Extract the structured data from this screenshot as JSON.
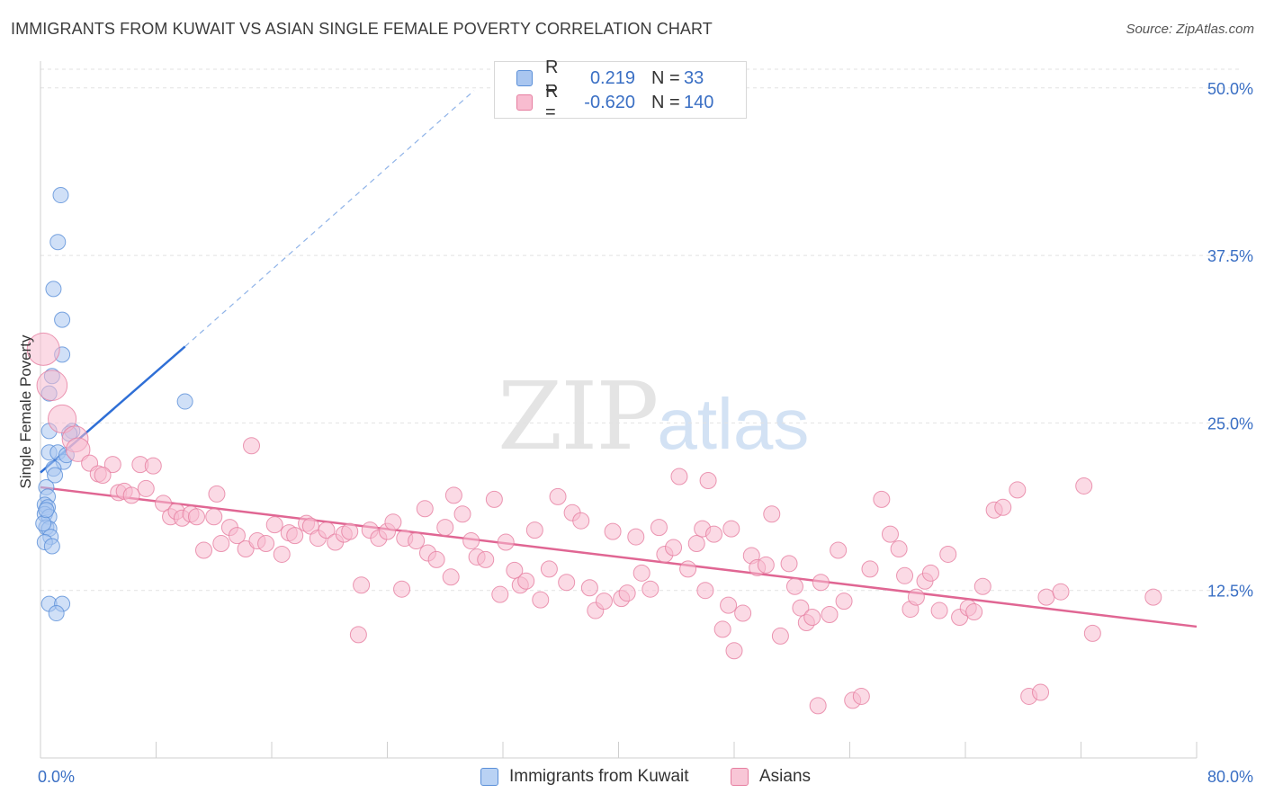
{
  "title": "IMMIGRANTS FROM KUWAIT VS ASIAN SINGLE FEMALE POVERTY CORRELATION CHART",
  "source": "Source: ZipAtlas.com",
  "watermark": {
    "zip": "ZIP",
    "atlas": "atlas"
  },
  "legend": [
    {
      "r_label": "R =",
      "r_value": "0.219",
      "n_label": "N =",
      "n_value": "33",
      "color": "#a9c6f0",
      "border": "#5a8fd8"
    },
    {
      "r_label": "R =",
      "r_value": "-0.620",
      "n_label": "N =",
      "n_value": "140",
      "color": "#f8bcd0",
      "border": "#e67ea0"
    }
  ],
  "chart_data": {
    "type": "scatter",
    "title": "IMMIGRANTS FROM KUWAIT VS ASIAN SINGLE FEMALE POVERTY CORRELATION CHART",
    "xlabel": "",
    "ylabel": "Single Female Poverty",
    "xlim": [
      0,
      80
    ],
    "ylim": [
      0,
      52
    ],
    "x_tick_labels": [
      "0.0%",
      "80.0%"
    ],
    "y_ticks": [
      12.5,
      25.0,
      37.5,
      50.0
    ],
    "y_tick_labels": [
      "12.5%",
      "25.0%",
      "37.5%",
      "50.0%"
    ],
    "grid": true,
    "legend_position": "top-center",
    "series": [
      {
        "name": "Immigrants from Kuwait",
        "color": "#a9c6f0",
        "stroke": "#5a8fd8",
        "trend": {
          "x": [
            0,
            10
          ],
          "y": [
            21.3,
            30.7
          ],
          "extended_to": [
            30,
            49.8
          ],
          "color": "#2f6fd6"
        },
        "points": [
          [
            1.4,
            42.0
          ],
          [
            1.2,
            38.5
          ],
          [
            0.9,
            35.0
          ],
          [
            1.5,
            32.7
          ],
          [
            1.5,
            30.1
          ],
          [
            0.8,
            28.5
          ],
          [
            0.6,
            27.2
          ],
          [
            10.0,
            26.6
          ],
          [
            0.6,
            24.4
          ],
          [
            2.2,
            24.4
          ],
          [
            0.6,
            22.8
          ],
          [
            1.2,
            22.8
          ],
          [
            1.6,
            22.1
          ],
          [
            0.9,
            21.6
          ],
          [
            1.0,
            21.1
          ],
          [
            0.4,
            20.2
          ],
          [
            0.5,
            19.5
          ],
          [
            0.3,
            18.9
          ],
          [
            0.5,
            18.7
          ],
          [
            0.3,
            18.2
          ],
          [
            0.6,
            18.0
          ],
          [
            0.4,
            17.2
          ],
          [
            0.6,
            17.1
          ],
          [
            0.7,
            16.5
          ],
          [
            0.3,
            16.1
          ],
          [
            0.8,
            15.8
          ],
          [
            0.6,
            11.5
          ],
          [
            1.5,
            11.5
          ],
          [
            1.1,
            10.8
          ],
          [
            2.0,
            24.2
          ],
          [
            1.8,
            22.6
          ],
          [
            0.2,
            17.5
          ],
          [
            0.4,
            18.5
          ]
        ]
      },
      {
        "name": "Asians",
        "color": "#f8bcd0",
        "stroke": "#e67ea0",
        "trend": {
          "x": [
            0,
            80
          ],
          "y": [
            20.2,
            9.8
          ],
          "color": "#e06693"
        },
        "points": [
          [
            0.2,
            30.5
          ],
          [
            0.8,
            27.8
          ],
          [
            1.5,
            25.3
          ],
          [
            2.4,
            23.8
          ],
          [
            2.6,
            23.0
          ],
          [
            3.4,
            22.0
          ],
          [
            5.0,
            21.9
          ],
          [
            4.0,
            21.2
          ],
          [
            4.3,
            21.1
          ],
          [
            6.9,
            21.9
          ],
          [
            7.8,
            21.8
          ],
          [
            14.6,
            23.3
          ],
          [
            5.4,
            19.8
          ],
          [
            5.8,
            19.9
          ],
          [
            6.3,
            19.6
          ],
          [
            7.3,
            20.1
          ],
          [
            8.5,
            19.0
          ],
          [
            9.0,
            18.0
          ],
          [
            9.4,
            18.4
          ],
          [
            9.8,
            17.9
          ],
          [
            10.4,
            18.2
          ],
          [
            10.8,
            18.0
          ],
          [
            12.2,
            19.7
          ],
          [
            11.3,
            15.5
          ],
          [
            12.5,
            16.0
          ],
          [
            13.1,
            17.2
          ],
          [
            13.6,
            16.6
          ],
          [
            14.2,
            15.6
          ],
          [
            15.0,
            16.2
          ],
          [
            15.6,
            16.0
          ],
          [
            16.2,
            17.4
          ],
          [
            16.7,
            15.2
          ],
          [
            17.2,
            16.8
          ],
          [
            17.6,
            16.6
          ],
          [
            18.4,
            17.5
          ],
          [
            18.7,
            17.3
          ],
          [
            19.2,
            16.4
          ],
          [
            19.8,
            17.0
          ],
          [
            20.4,
            16.1
          ],
          [
            21.0,
            16.7
          ],
          [
            21.4,
            16.9
          ],
          [
            22.2,
            12.9
          ],
          [
            22.0,
            9.2
          ],
          [
            22.8,
            17.0
          ],
          [
            23.4,
            16.4
          ],
          [
            24.0,
            16.9
          ],
          [
            24.4,
            17.6
          ],
          [
            25.2,
            16.4
          ],
          [
            25.0,
            12.6
          ],
          [
            26.0,
            16.2
          ],
          [
            26.6,
            18.6
          ],
          [
            26.8,
            15.3
          ],
          [
            27.4,
            14.8
          ],
          [
            28.0,
            17.2
          ],
          [
            28.4,
            13.5
          ],
          [
            28.6,
            19.6
          ],
          [
            29.2,
            18.2
          ],
          [
            29.8,
            16.2
          ],
          [
            30.2,
            15.0
          ],
          [
            30.8,
            14.8
          ],
          [
            31.4,
            19.3
          ],
          [
            31.8,
            12.2
          ],
          [
            32.2,
            16.1
          ],
          [
            32.8,
            14.0
          ],
          [
            33.2,
            12.9
          ],
          [
            33.6,
            13.2
          ],
          [
            34.2,
            17.0
          ],
          [
            34.6,
            11.8
          ],
          [
            35.2,
            14.1
          ],
          [
            35.8,
            19.5
          ],
          [
            36.4,
            13.1
          ],
          [
            36.8,
            18.3
          ],
          [
            37.4,
            17.7
          ],
          [
            38.0,
            12.7
          ],
          [
            38.4,
            11.0
          ],
          [
            39.0,
            11.7
          ],
          [
            39.6,
            16.9
          ],
          [
            40.2,
            11.9
          ],
          [
            40.6,
            12.3
          ],
          [
            41.2,
            16.5
          ],
          [
            41.6,
            13.8
          ],
          [
            42.2,
            12.6
          ],
          [
            42.8,
            17.2
          ],
          [
            43.2,
            15.2
          ],
          [
            43.8,
            15.7
          ],
          [
            44.2,
            21.0
          ],
          [
            44.8,
            14.1
          ],
          [
            45.4,
            16.0
          ],
          [
            45.8,
            17.1
          ],
          [
            46.2,
            20.7
          ],
          [
            46.6,
            16.7
          ],
          [
            47.2,
            9.6
          ],
          [
            47.6,
            11.4
          ],
          [
            48.0,
            8.0
          ],
          [
            48.6,
            10.8
          ],
          [
            49.2,
            15.1
          ],
          [
            49.6,
            14.2
          ],
          [
            50.2,
            14.4
          ],
          [
            50.6,
            18.2
          ],
          [
            51.2,
            9.1
          ],
          [
            51.8,
            14.5
          ],
          [
            52.2,
            12.8
          ],
          [
            52.6,
            11.2
          ],
          [
            53.0,
            10.1
          ],
          [
            53.4,
            10.5
          ],
          [
            54.0,
            13.1
          ],
          [
            54.6,
            10.7
          ],
          [
            55.2,
            15.5
          ],
          [
            55.6,
            11.7
          ],
          [
            56.2,
            4.3
          ],
          [
            56.8,
            4.6
          ],
          [
            57.4,
            14.1
          ],
          [
            58.2,
            19.3
          ],
          [
            58.8,
            16.7
          ],
          [
            59.4,
            15.6
          ],
          [
            59.8,
            13.6
          ],
          [
            60.2,
            11.1
          ],
          [
            60.6,
            12.0
          ],
          [
            61.2,
            13.2
          ],
          [
            61.6,
            13.8
          ],
          [
            62.2,
            11.0
          ],
          [
            62.8,
            15.2
          ],
          [
            63.6,
            10.5
          ],
          [
            64.2,
            11.2
          ],
          [
            64.6,
            10.9
          ],
          [
            65.2,
            12.8
          ],
          [
            66.0,
            18.5
          ],
          [
            66.6,
            18.7
          ],
          [
            67.6,
            20.0
          ],
          [
            68.4,
            4.6
          ],
          [
            69.2,
            4.9
          ],
          [
            69.6,
            12.0
          ],
          [
            70.6,
            12.4
          ],
          [
            72.2,
            20.3
          ],
          [
            72.8,
            9.3
          ],
          [
            77.0,
            12.0
          ],
          [
            47.8,
            17.1
          ],
          [
            53.8,
            3.9
          ],
          [
            12.0,
            18.0
          ],
          [
            46.0,
            12.5
          ]
        ]
      }
    ]
  },
  "bottom_legend": [
    "Immigrants from Kuwait",
    "Asians"
  ]
}
